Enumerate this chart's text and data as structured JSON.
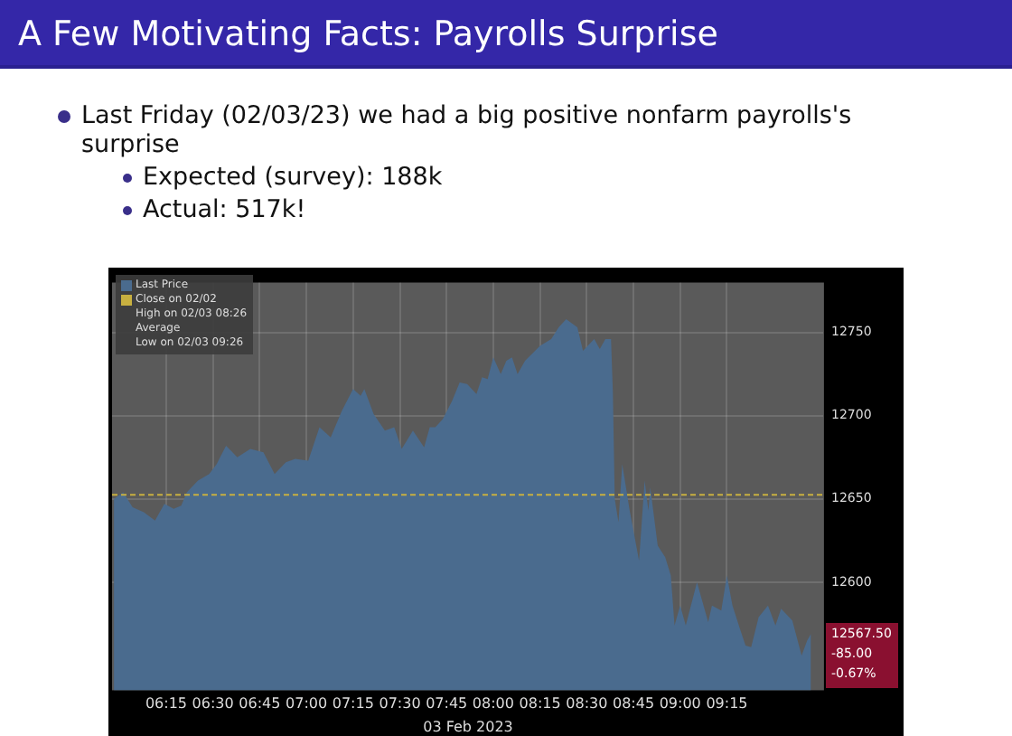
{
  "chart_data": {
    "type": "area",
    "title": "A Few Motivating Facts: Payrolls Surprise",
    "subtitle": "Last Friday (02/03/23) we had a big positive nonfarm payrolls's surprise",
    "xlabel": "03 Feb 2023",
    "annotations": [
      "Expected (survey): 188k",
      "Actual: 517k!",
      "12567.50",
      "-85.00",
      "-0.67%",
      "High on 02/03 08:26",
      "Average",
      "Low on 02/03 09:26"
    ],
    "x": [
      5.97,
      6.02,
      6.07,
      6.13,
      6.19,
      6.24,
      6.29,
      6.33,
      6.36,
      6.42,
      6.48,
      6.52,
      6.57,
      6.63,
      6.7,
      6.77,
      6.83,
      6.89,
      6.94,
      7.01,
      7.07,
      7.13,
      7.19,
      7.25,
      7.29,
      7.31,
      7.36,
      7.42,
      7.47,
      7.51,
      7.57,
      7.63,
      7.66,
      7.69,
      7.73,
      7.78,
      7.82,
      7.86,
      7.91,
      7.94,
      7.97,
      8.0,
      8.04,
      8.07,
      8.1,
      8.13,
      8.17,
      8.25,
      8.31,
      8.35,
      8.39,
      8.45,
      8.48,
      8.54,
      8.57,
      8.6,
      8.63,
      8.64,
      8.65,
      8.67,
      8.69,
      8.73,
      8.78,
      8.81,
      8.83,
      8.84,
      8.88,
      8.92,
      8.95,
      8.97,
      9.0,
      9.03,
      9.09,
      9.15,
      9.17,
      9.22,
      9.25,
      9.28,
      9.32,
      9.35,
      9.38,
      9.42,
      9.47,
      9.51,
      9.54,
      9.6,
      9.65,
      9.68,
      9.7
    ],
    "series": [
      {
        "name": "Last Price",
        "color": "#4a6b8e",
        "values": [
          12650,
          12654,
          12645,
          12642,
          12637,
          12647,
          12644,
          12646,
          12654,
          12661,
          12665,
          12671,
          12682,
          12675,
          12680,
          12678,
          12665,
          12672,
          12674,
          12673,
          12693,
          12687,
          12703,
          12716,
          12712,
          12716,
          12701,
          12691,
          12693,
          12680,
          12691,
          12681,
          12693,
          12693,
          12698,
          12709,
          12720,
          12719,
          12713,
          12723,
          12722,
          12735,
          12725,
          12733,
          12735,
          12725,
          12733,
          12742,
          12746,
          12753,
          12758,
          12753,
          12739,
          12746,
          12740,
          12746,
          12746,
          12714,
          12650,
          12636,
          12671,
          12643,
          12613,
          12661,
          12643,
          12657,
          12622,
          12615,
          12604,
          12574,
          12586,
          12574,
          12600,
          12576,
          12586,
          12583,
          12604,
          12586,
          12572,
          12562,
          12561,
          12579,
          12586,
          12574,
          12584,
          12577,
          12556,
          12565,
          12569
        ]
      }
    ],
    "xlim": [
      5.96,
      9.77
    ],
    "xticks": [
      {
        "value": 6.25,
        "label": "06:15"
      },
      {
        "value": 6.5,
        "label": "06:30"
      },
      {
        "value": 6.75,
        "label": "06:45"
      },
      {
        "value": 7,
        "label": "07:00"
      },
      {
        "value": 7.25,
        "label": "07:15"
      },
      {
        "value": 7.5,
        "label": "07:30"
      },
      {
        "value": 7.75,
        "label": "07:45"
      },
      {
        "value": 8,
        "label": "08:00"
      },
      {
        "value": 8.25,
        "label": "08:15"
      },
      {
        "value": 8.5,
        "label": "08:30"
      },
      {
        "value": 8.75,
        "label": "08:45"
      },
      {
        "value": 9,
        "label": "09:00"
      },
      {
        "value": 9.25,
        "label": "09:15"
      }
    ],
    "ylim": [
      12535,
      12780
    ],
    "yticks": [
      12600,
      12650,
      12700,
      12750
    ],
    "ref_lines": [
      {
        "axis": "y",
        "value": 12652.5,
        "label": "Close on 02/02",
        "color": "#c8b040",
        "line_style": "dashed"
      }
    ],
    "grid": true,
    "legend": "top left"
  }
}
